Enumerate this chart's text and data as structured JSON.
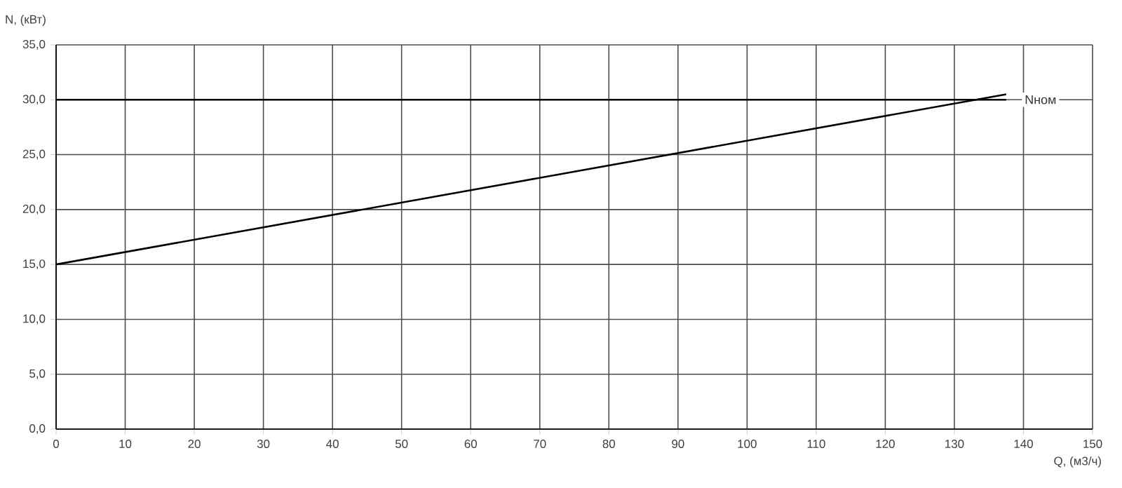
{
  "chart_data": {
    "type": "line",
    "xlabel": "Q, (м3/ч)",
    "ylabel": "N, (кВт)",
    "xlim": [
      0,
      150
    ],
    "xticks": [
      0,
      10,
      20,
      30,
      40,
      50,
      60,
      70,
      80,
      90,
      100,
      110,
      120,
      130,
      140,
      150
    ],
    "ylim": [
      0,
      35
    ],
    "yticks": [
      {
        "value": 0,
        "label": "0,0"
      },
      {
        "value": 5,
        "label": "5,0"
      },
      {
        "value": 10,
        "label": "10,0"
      },
      {
        "value": 15,
        "label": "15,0"
      },
      {
        "value": 20,
        "label": "20,0"
      },
      {
        "value": 25,
        "label": "25,0"
      },
      {
        "value": 30,
        "label": "30,0"
      },
      {
        "value": 35,
        "label": "35,0"
      }
    ],
    "x": [
      0,
      137.5
    ],
    "grid": true,
    "marker": "none",
    "line_style": "solid",
    "series": [
      {
        "color": "#000000",
        "values": [
          15,
          30.5
        ]
      },
      {
        "name": "Nном",
        "color": "#000000",
        "values": [
          30,
          30
        ]
      }
    ]
  }
}
